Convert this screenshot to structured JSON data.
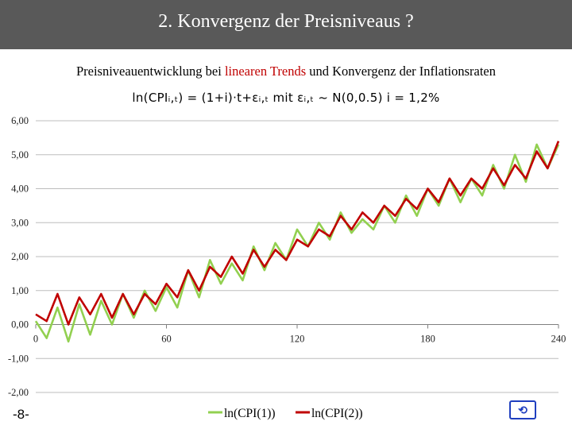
{
  "slide": {
    "title": "2. Konvergenz der Preisniveaus ?",
    "subtitle_pre": "Preisniveauentwicklung bei ",
    "subtitle_highlight": "linearen Trends",
    "subtitle_post": " und Konvergenz der Inflationsraten",
    "formula": "ln(CPIᵢ,ₜ) = (1+i)·t+εᵢ,ₜ  mit  εᵢ,ₜ ~ N(0,0.5)   i = 1,2%",
    "page_number": "-8-",
    "nav_label": "⟲"
  },
  "colors": {
    "series1": "#92d050",
    "series2": "#c00000",
    "title_bar": "#595959",
    "highlight": "#c00000"
  },
  "chart_data": {
    "type": "line",
    "title": "",
    "xlabel": "",
    "ylabel": "",
    "xlim": [
      0,
      240
    ],
    "ylim": [
      -2,
      6
    ],
    "x_ticks": [
      0,
      60,
      120,
      180,
      240
    ],
    "x_tick_labels": [
      "0",
      "60",
      "120",
      "180",
      "240"
    ],
    "y_ticks": [
      6,
      5,
      4,
      3,
      2,
      1,
      0,
      -1,
      -2
    ],
    "y_tick_labels": [
      "6,00",
      "5,00",
      "4,00",
      "3,00",
      "2,00",
      "1,00",
      "0,00",
      "-1,00",
      "-2,00"
    ],
    "grid": true,
    "legend": "bottom-center",
    "series": [
      {
        "name": "ln(CPI(1))",
        "x": [
          0,
          5,
          10,
          15,
          20,
          25,
          30,
          35,
          40,
          45,
          50,
          55,
          60,
          65,
          70,
          75,
          80,
          85,
          90,
          95,
          100,
          105,
          110,
          115,
          120,
          125,
          130,
          135,
          140,
          145,
          150,
          155,
          160,
          165,
          170,
          175,
          180,
          185,
          190,
          195,
          200,
          205,
          210,
          215,
          220,
          225,
          230,
          235,
          240
        ],
        "values": [
          0.1,
          -0.4,
          0.5,
          -0.5,
          0.6,
          -0.3,
          0.7,
          0.0,
          0.9,
          0.2,
          1.0,
          0.4,
          1.1,
          0.5,
          1.6,
          0.8,
          1.9,
          1.2,
          1.8,
          1.3,
          2.3,
          1.6,
          2.4,
          1.9,
          2.8,
          2.3,
          3.0,
          2.5,
          3.3,
          2.7,
          3.1,
          2.8,
          3.5,
          3.0,
          3.8,
          3.2,
          4.0,
          3.5,
          4.3,
          3.6,
          4.3,
          3.8,
          4.7,
          4.0,
          5.0,
          4.2,
          5.3,
          4.6,
          5.3
        ]
      },
      {
        "name": "ln(CPI(2))",
        "x": [
          0,
          5,
          10,
          15,
          20,
          25,
          30,
          35,
          40,
          45,
          50,
          55,
          60,
          65,
          70,
          75,
          80,
          85,
          90,
          95,
          100,
          105,
          110,
          115,
          120,
          125,
          130,
          135,
          140,
          145,
          150,
          155,
          160,
          165,
          170,
          175,
          180,
          185,
          190,
          195,
          200,
          205,
          210,
          215,
          220,
          225,
          230,
          235,
          240
        ],
        "values": [
          0.3,
          0.1,
          0.9,
          0.0,
          0.8,
          0.3,
          0.9,
          0.2,
          0.9,
          0.3,
          0.9,
          0.6,
          1.2,
          0.8,
          1.6,
          1.0,
          1.7,
          1.4,
          2.0,
          1.5,
          2.2,
          1.7,
          2.2,
          1.9,
          2.5,
          2.3,
          2.8,
          2.6,
          3.2,
          2.8,
          3.3,
          3.0,
          3.5,
          3.2,
          3.7,
          3.4,
          4.0,
          3.6,
          4.3,
          3.8,
          4.3,
          4.0,
          4.6,
          4.1,
          4.7,
          4.3,
          5.1,
          4.6,
          5.4
        ]
      }
    ]
  }
}
